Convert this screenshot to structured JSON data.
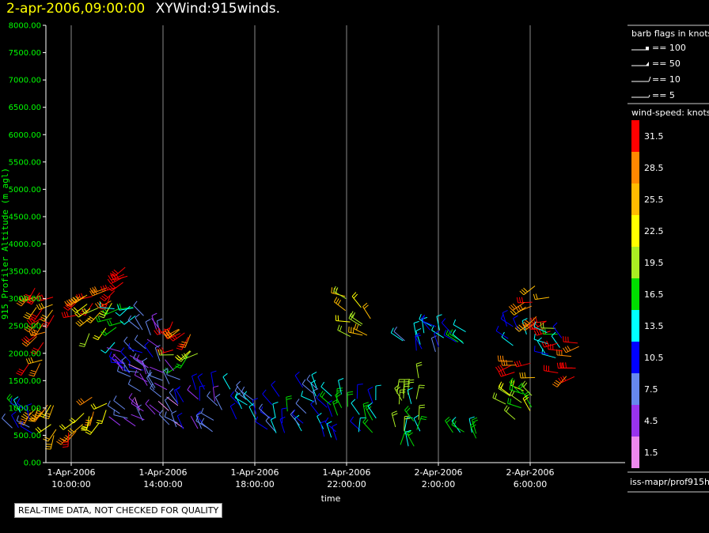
{
  "header": {
    "datetime": "2-apr-2006,09:00:00",
    "title": "XYWind:915winds."
  },
  "colors": {
    "axis_labels": "#00ff00",
    "gridlines": "#8a8a8a",
    "header_time": "#ffff00"
  },
  "chart_data": {
    "type": "scatter",
    "subtype": "wind-barb profile (time vs. altitude)",
    "ylabel": "915 Profiler Altitude (m agl)",
    "xlabel": "time",
    "ylim": [
      0,
      8000
    ],
    "y_ticks": [
      "0.00",
      "500.00",
      "1000.00",
      "1500.00",
      "2000.00",
      "2500.00",
      "3000.00",
      "3500.00",
      "4000.00",
      "4500.00",
      "5000.00",
      "5500.00",
      "6000.00",
      "6500.00",
      "7000.00",
      "7500.00",
      "8000.00"
    ],
    "x_ticks": [
      {
        "date": "1-Apr-2006",
        "time": "10:00:00"
      },
      {
        "date": "1-Apr-2006",
        "time": "14:00:00"
      },
      {
        "date": "1-Apr-2006",
        "time": "18:00:00"
      },
      {
        "date": "1-Apr-2006",
        "time": "22:00:00"
      },
      {
        "date": "2-Apr-2006",
        "time": "2:00:00"
      },
      {
        "date": "2-Apr-2006",
        "time": "6:00:00"
      }
    ],
    "vertical_gridlines": true,
    "barb_legend": {
      "title": "barb flags in knots",
      "entries": [
        "== 100",
        "== 50",
        "== 10",
        "== 5"
      ]
    },
    "speed_legend": {
      "title": "wind-speed: knots",
      "bins": [
        {
          "label": "31.5",
          "color": "#ff0000"
        },
        {
          "label": "28.5",
          "color": "#ff8800"
        },
        {
          "label": "25.5",
          "color": "#ffbb00"
        },
        {
          "label": "22.5",
          "color": "#ffff00"
        },
        {
          "label": "19.5",
          "color": "#aaee22"
        },
        {
          "label": "16.5",
          "color": "#00dd00"
        },
        {
          "label": "13.5",
          "color": "#00ffff"
        },
        {
          "label": "10.5",
          "color": "#0000ff"
        },
        {
          "label": "7.5",
          "color": "#6688ee"
        },
        {
          "label": "4.5",
          "color": "#9933ee"
        },
        {
          "label": "1.5",
          "color": "#ee88ee"
        }
      ]
    },
    "barb_clusters": [
      {
        "time": "08:45",
        "alt_min": 500,
        "alt_max": 1100,
        "speed": 27,
        "dir": 210
      },
      {
        "time": "08:45",
        "alt_min": 1700,
        "alt_max": 3200,
        "speed": 30,
        "dir": 230
      },
      {
        "time": "09:40",
        "alt_min": 500,
        "alt_max": 900,
        "speed": 27,
        "dir": 210
      },
      {
        "time": "10:30",
        "alt_min": 2600,
        "alt_max": 3100,
        "speed": 30,
        "dir": 230
      },
      {
        "time": "11:15",
        "alt_min": 2300,
        "alt_max": 3100,
        "speed": 24,
        "dir": 230
      },
      {
        "time": "11:00",
        "alt_min": 600,
        "alt_max": 1200,
        "speed": 26,
        "dir": 220
      },
      {
        "time": "12:00",
        "alt_min": 2900,
        "alt_max": 3600,
        "speed": 31,
        "dir": 225
      },
      {
        "time": "12:20",
        "alt_min": 2200,
        "alt_max": 2900,
        "speed": 15,
        "dir": 250
      },
      {
        "time": "12:40",
        "alt_min": 600,
        "alt_max": 2100,
        "speed": 7,
        "dir": 300
      },
      {
        "time": "13:30",
        "alt_min": 700,
        "alt_max": 2700,
        "speed": 6,
        "dir": 320
      },
      {
        "time": "14:40",
        "alt_min": 2000,
        "alt_max": 2600,
        "speed": 29,
        "dir": 230
      },
      {
        "time": "15:00",
        "alt_min": 1700,
        "alt_max": 2100,
        "speed": 18,
        "dir": 240
      },
      {
        "time": "14:30",
        "alt_min": 600,
        "alt_max": 1700,
        "speed": 6,
        "dir": 320
      },
      {
        "time": "16:00",
        "alt_min": 500,
        "alt_max": 1500,
        "speed": 8,
        "dir": 330
      },
      {
        "time": "17:30",
        "alt_min": 600,
        "alt_max": 1400,
        "speed": 10,
        "dir": 320
      },
      {
        "time": "19:00",
        "alt_min": 500,
        "alt_max": 1300,
        "speed": 12,
        "dir": 330
      },
      {
        "time": "20:30",
        "alt_min": 500,
        "alt_max": 1400,
        "speed": 11,
        "dir": 320
      },
      {
        "time": "21:30",
        "alt_min": 400,
        "alt_max": 1300,
        "speed": 14,
        "dir": 340
      },
      {
        "time": "22:30",
        "alt_min": 2300,
        "alt_max": 3100,
        "speed": 22,
        "dir": 300
      },
      {
        "time": "23:00",
        "alt_min": 500,
        "alt_max": 1200,
        "speed": 13,
        "dir": 340
      },
      {
        "time": "00:40",
        "alt_min": 300,
        "alt_max": 1600,
        "speed": 17,
        "dir": 350
      },
      {
        "time": "01:00",
        "alt_min": 2000,
        "alt_max": 2500,
        "speed": 11,
        "dir": 330
      },
      {
        "time": "02:00",
        "alt_min": 2000,
        "alt_max": 2500,
        "speed": 10,
        "dir": 320
      },
      {
        "time": "03:00",
        "alt_min": 2100,
        "alt_max": 2400,
        "speed": 14,
        "dir": 300
      },
      {
        "time": "03:10",
        "alt_min": 400,
        "alt_max": 700,
        "speed": 17,
        "dir": 330
      },
      {
        "time": "05:20",
        "alt_min": 2100,
        "alt_max": 2500,
        "speed": 12,
        "dir": 320
      },
      {
        "time": "05:30",
        "alt_min": 500,
        "alt_max": 1400,
        "speed": 20,
        "dir": 310
      },
      {
        "time": "05:40",
        "alt_min": 1500,
        "alt_max": 1900,
        "speed": 30,
        "dir": 250
      },
      {
        "time": "06:20",
        "alt_min": 2400,
        "alt_max": 3300,
        "speed": 28,
        "dir": 240
      },
      {
        "time": "07:00",
        "alt_min": 1900,
        "alt_max": 2500,
        "speed": 15,
        "dir": 300
      },
      {
        "time": "07:40",
        "alt_min": 1500,
        "alt_max": 2200,
        "speed": 31,
        "dir": 250
      },
      {
        "time": "08:00",
        "alt_min": 500,
        "alt_max": 1100,
        "speed": 12,
        "dir": 320
      }
    ]
  },
  "station_label": "iss-mapr/prof915h",
  "qc_note": "REAL-TIME DATA, NOT CHECKED FOR QUALITY"
}
